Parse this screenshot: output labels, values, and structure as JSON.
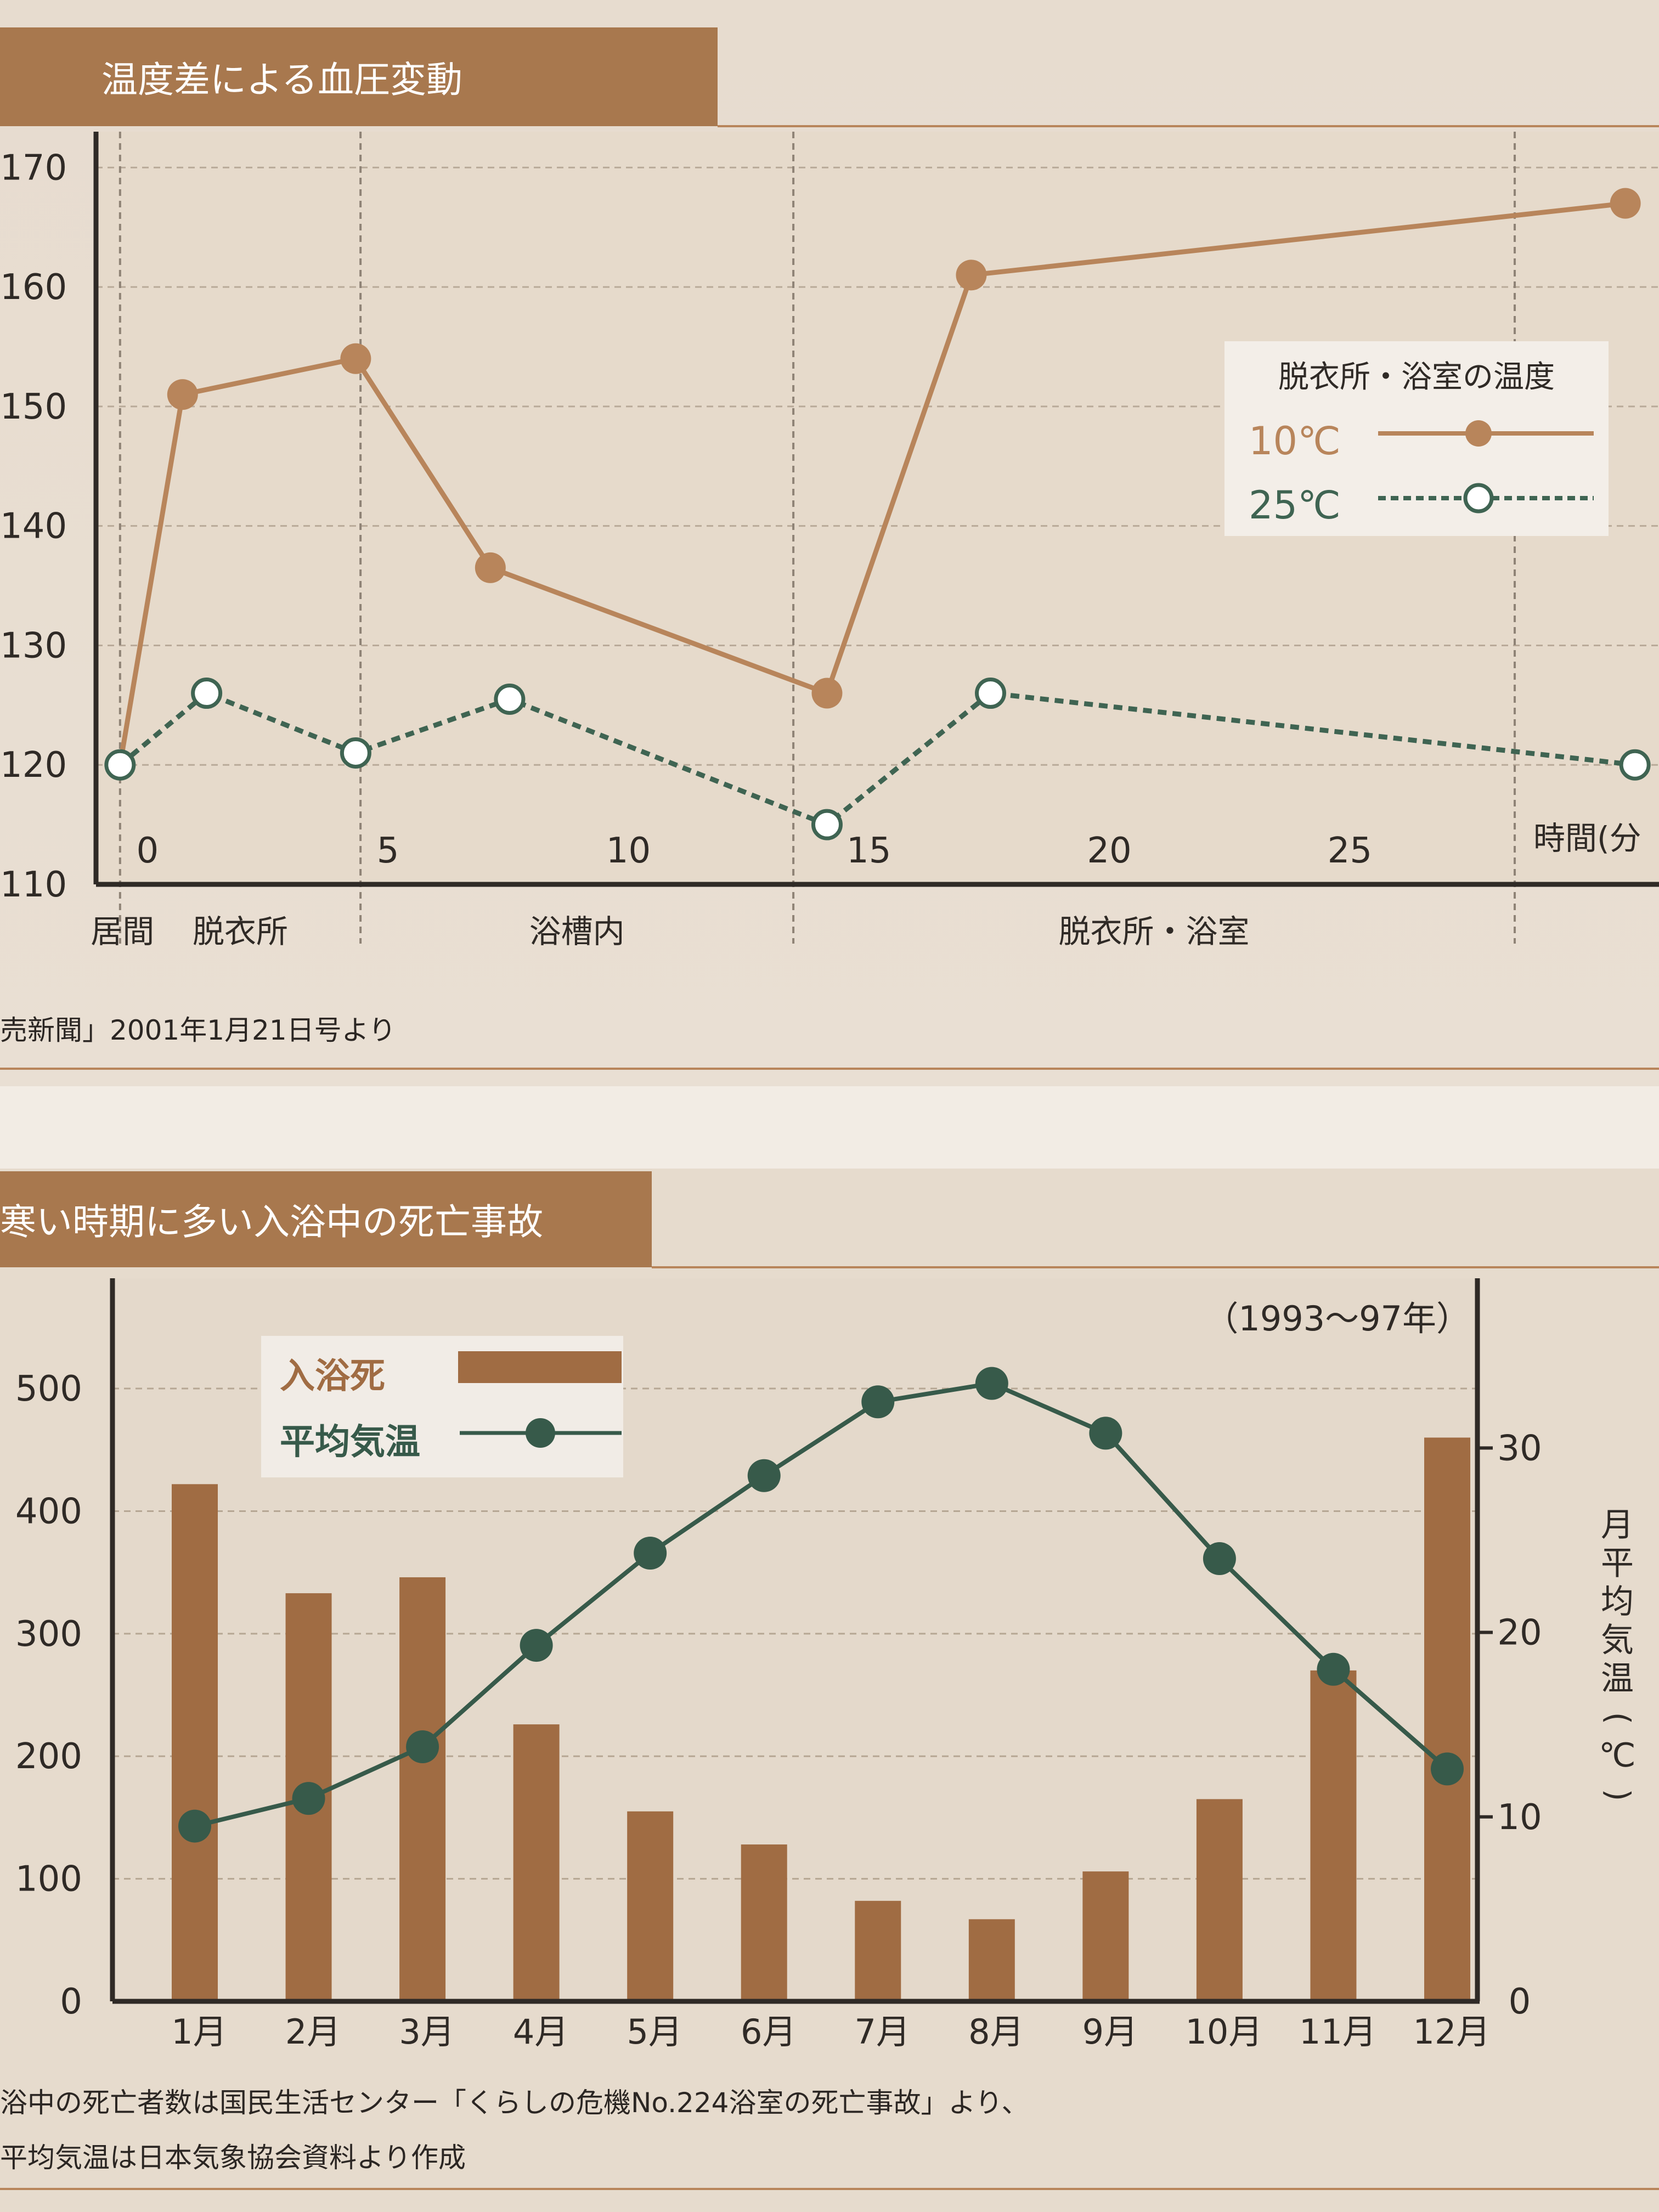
{
  "chart_data": [
    {
      "type": "line",
      "title": "温度差による血圧変動",
      "xlabel": "時間(分",
      "x_ticks": [
        "0",
        "5",
        "10",
        "15",
        "20",
        "25"
      ],
      "xlim": [
        -0.5,
        32
      ],
      "y_ticks": [
        "110",
        "120",
        "130",
        "140",
        "150",
        "160",
        "170"
      ],
      "ylim": [
        110,
        173
      ],
      "grid": true,
      "phases": [
        "居間",
        "脱衣所",
        "浴槽内",
        "脱衣所・浴室"
      ],
      "phase_boundaries": [
        0,
        5,
        14,
        29
      ],
      "legend": {
        "title": "脱衣所・浴室の温度",
        "placement": "right"
      },
      "series": [
        {
          "name": "10℃",
          "color": "#b8855b",
          "style": "solid",
          "points": [
            [
              0,
              120
            ],
            [
              1.3,
              151
            ],
            [
              4.9,
              154
            ],
            [
              7.7,
              136.5
            ],
            [
              14.7,
              126
            ],
            [
              17.7,
              161
            ],
            [
              31.3,
              167
            ]
          ]
        },
        {
          "name": "25℃",
          "color": "#3f6452",
          "style": "dashed",
          "points": [
            [
              0,
              120
            ],
            [
              1.8,
              126
            ],
            [
              4.9,
              121
            ],
            [
              8.1,
              125.5
            ],
            [
              14.7,
              115
            ],
            [
              18.1,
              126
            ],
            [
              31.5,
              120
            ]
          ]
        }
      ],
      "source_note": "売新聞」2001年1月21日号より"
    },
    {
      "type": "bar",
      "title": "寒い時期に多い入浴中の死亡事故",
      "subtitle": "（1993～97年）",
      "categories": [
        "1月",
        "2月",
        "3月",
        "4月",
        "5月",
        "6月",
        "7月",
        "8月",
        "9月",
        "10月",
        "11月",
        "12月"
      ],
      "y_ticks": [
        "0",
        "100",
        "200",
        "300",
        "400",
        "500"
      ],
      "ylim": [
        0,
        590
      ],
      "y2_ticks": [
        "0",
        "10",
        "20",
        "30"
      ],
      "y2lim": [
        0,
        39.2
      ],
      "y2label": "月平均気温(℃)",
      "grid": true,
      "legend_placement": "top-left",
      "series": [
        {
          "name": "入浴死",
          "type": "bar",
          "color": "#a06c43",
          "values": [
            422,
            333,
            346,
            226,
            155,
            128,
            82,
            67,
            106,
            165,
            270,
            460
          ]
        },
        {
          "name": "平均気温",
          "type": "line",
          "axis": "y2",
          "color": "#375a4a",
          "values": [
            9.5,
            11,
            13.8,
            19.3,
            24.3,
            28.5,
            32.5,
            33.5,
            30.8,
            24,
            18,
            12.6
          ]
        }
      ],
      "source_note_lines": [
        "浴中の死亡者数は国民生活センター「くらしの危機No.224浴室の死亡事故」より、",
        "平均気温は日本気象協会資料より作成"
      ]
    }
  ]
}
